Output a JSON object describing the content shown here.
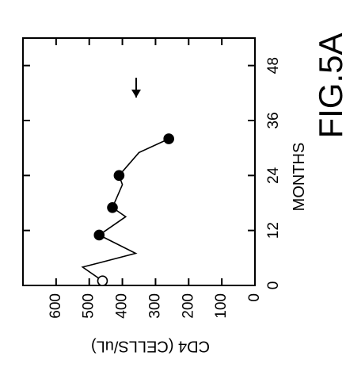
{
  "chart_data": {
    "type": "line",
    "title": "FIG.5A",
    "x_label": "MONTHS",
    "y_label": "CD4 (CELLS/uL)",
    "x": [
      1,
      4,
      7,
      11,
      15,
      17,
      22,
      24,
      29,
      32
    ],
    "series": [
      {
        "color": "#000000",
        "values": [
          460,
          520,
          360,
          470,
          390,
          430,
          400,
          410,
          350,
          260
        ],
        "markers": [
          "open",
          "none",
          "none",
          "filled",
          "none",
          "filled",
          "none",
          "filled",
          "none",
          "filled"
        ]
      }
    ],
    "xlim": [
      0,
      54
    ],
    "xticks": [
      0,
      12,
      24,
      36,
      48
    ],
    "ylim": [
      0,
      700
    ],
    "yticks": [
      0,
      100,
      200,
      300,
      400,
      500,
      600
    ]
  }
}
